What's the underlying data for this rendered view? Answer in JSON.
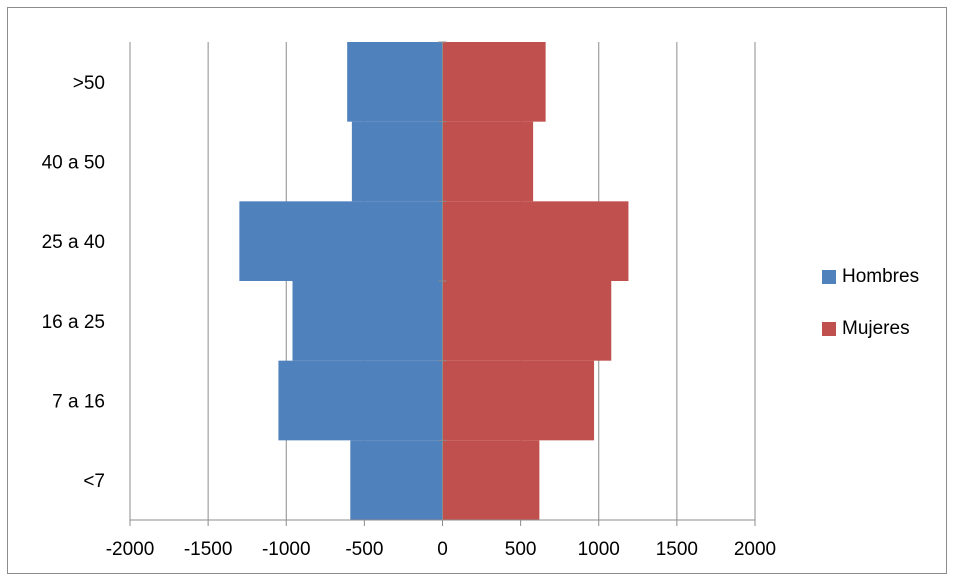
{
  "chart_data": {
    "type": "bar",
    "orientation": "horizontal",
    "title": "",
    "categories": [
      "<7",
      "7 a 16",
      "16 a 25",
      "25 a 40",
      "40 a 50",
      ">50"
    ],
    "series": [
      {
        "name": "Hombres",
        "color": "#4f81bd",
        "values": [
          -590,
          -1050,
          -960,
          -1300,
          -580,
          -610
        ]
      },
      {
        "name": "Mujeres",
        "color": "#c0504d",
        "values": [
          620,
          970,
          1080,
          1190,
          580,
          660
        ]
      }
    ],
    "xlim": [
      -2000,
      2000
    ],
    "xticks": [
      "-2000",
      "-1500",
      "-1000",
      "-500",
      "0",
      "500",
      "1000",
      "1500",
      "2000"
    ],
    "xgrid": true,
    "legend_position": "right"
  }
}
